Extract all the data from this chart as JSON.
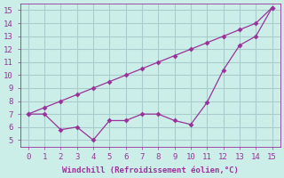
{
  "x": [
    0,
    1,
    2,
    3,
    4,
    5,
    6,
    7,
    8,
    9,
    10,
    11,
    12,
    13,
    14,
    15
  ],
  "y_straight": [
    7.0,
    7.5,
    8.0,
    8.5,
    9.0,
    9.5,
    10.0,
    10.5,
    11.0,
    11.5,
    12.0,
    12.5,
    13.0,
    13.5,
    14.0,
    15.2
  ],
  "y_wiggly": [
    7.0,
    7.0,
    5.8,
    6.0,
    5.0,
    6.5,
    6.5,
    7.0,
    7.0,
    6.5,
    6.2,
    7.9,
    10.4,
    12.3,
    13.0,
    15.2
  ],
  "line_color": "#993399",
  "bg_color": "#cceee8",
  "grid_color": "#aacccc",
  "xlabel": "Windchill (Refroidissement éolien,°C)",
  "xlim": [
    -0.5,
    15.5
  ],
  "ylim": [
    4.5,
    15.5
  ],
  "xticks": [
    0,
    1,
    2,
    3,
    4,
    5,
    6,
    7,
    8,
    9,
    10,
    11,
    12,
    13,
    14,
    15
  ],
  "yticks": [
    5,
    6,
    7,
    8,
    9,
    10,
    11,
    12,
    13,
    14,
    15
  ],
  "xlabel_color": "#993399",
  "tick_color": "#993399",
  "markersize": 3
}
